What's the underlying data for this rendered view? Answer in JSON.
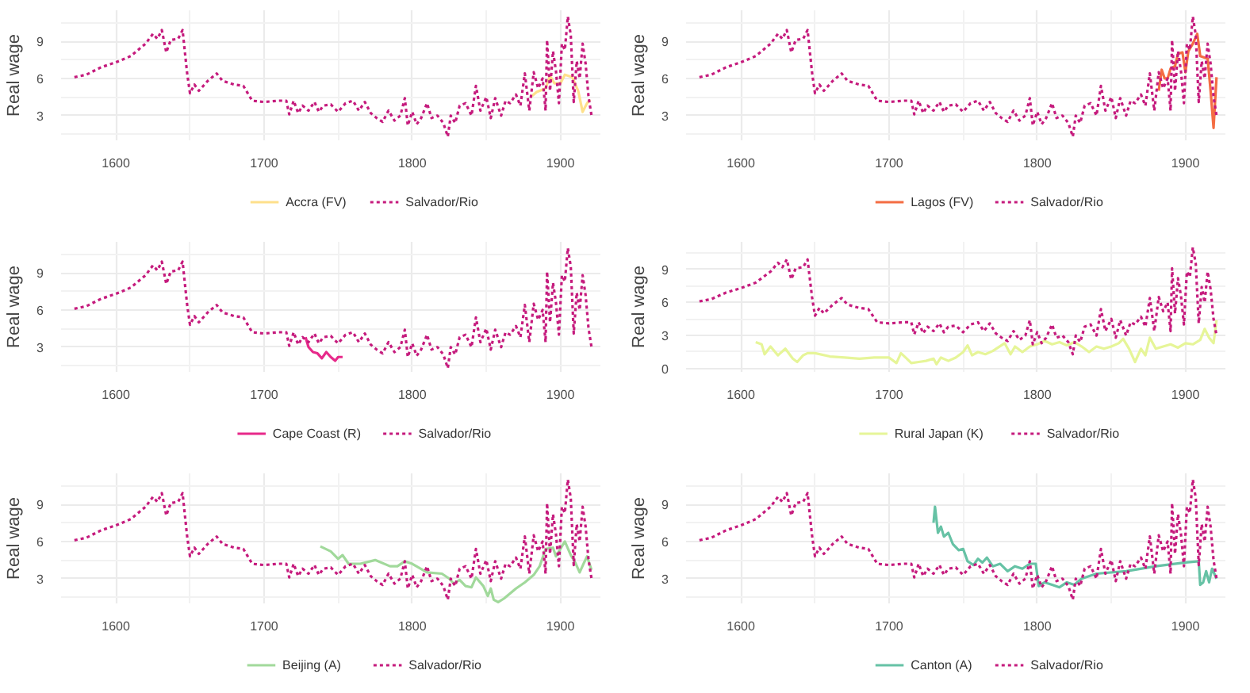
{
  "chart_data": [
    {
      "type": "line",
      "ylabel": "Real wage",
      "xlim": [
        1563,
        1927
      ],
      "xticks": [
        1600,
        1700,
        1800,
        1900
      ],
      "ylim": [
        1.0,
        11.5
      ],
      "yticks": [
        3,
        6,
        9
      ],
      "grid": true,
      "legend": "bottom",
      "series": [
        {
          "name": "Accra (FV)",
          "color": "#fee08b",
          "line_style": "solid",
          "x": [
            1880,
            1884,
            1890,
            1893,
            1896,
            1900,
            1903,
            1908,
            1912,
            1915,
            1918,
            1920
          ],
          "values": [
            4.5,
            4.9,
            5.2,
            6.2,
            5.6,
            5.6,
            6.3,
            6.1,
            5.0,
            3.3,
            4.0,
            4.3
          ]
        },
        {
          "name": "Salvador/Rio",
          "color": "#c51b7d",
          "line_style": "dotted",
          "x": [
            1572,
            1580,
            1590,
            1600,
            1610,
            1620,
            1625,
            1628,
            1631,
            1634,
            1637,
            1642,
            1645,
            1648,
            1650,
            1653,
            1656,
            1662,
            1668,
            1672,
            1680,
            1686,
            1692,
            1700,
            1710,
            1715,
            1717,
            1720,
            1723,
            1726,
            1730,
            1734,
            1737,
            1740,
            1745,
            1750,
            1755,
            1760,
            1764,
            1768,
            1772,
            1776,
            1780,
            1784,
            1788,
            1792,
            1795,
            1797,
            1800,
            1803,
            1806,
            1810,
            1813,
            1817,
            1821,
            1824,
            1826,
            1829,
            1832,
            1836,
            1840,
            1843,
            1846,
            1850,
            1853,
            1856,
            1860,
            1863,
            1866,
            1870,
            1873,
            1876,
            1879,
            1882,
            1885,
            1888,
            1890,
            1891,
            1893,
            1895,
            1897,
            1899,
            1901,
            1903,
            1905,
            1907,
            1909,
            1911,
            1913,
            1915,
            1917,
            1919,
            1921
          ],
          "values": [
            6.1,
            6.3,
            6.9,
            7.3,
            7.8,
            8.8,
            9.6,
            9.2,
            9.9,
            8.1,
            9.1,
            9.2,
            9.9,
            6.5,
            4.8,
            5.5,
            5.0,
            5.8,
            6.4,
            5.8,
            5.5,
            5.4,
            4.2,
            4.1,
            4.2,
            4.2,
            3.1,
            4.2,
            3.2,
            3.8,
            3.4,
            4.1,
            3.3,
            3.8,
            3.9,
            3.3,
            4.0,
            4.2,
            3.4,
            4.1,
            3.2,
            2.8,
            2.5,
            3.4,
            2.6,
            3.0,
            4.4,
            2.2,
            3.3,
            2.3,
            2.8,
            4.0,
            2.8,
            3.0,
            2.4,
            1.3,
            3.0,
            2.4,
            3.8,
            4.0,
            3.0,
            5.4,
            3.4,
            4.5,
            2.8,
            4.4,
            3.0,
            4.2,
            4.0,
            4.7,
            3.8,
            6.4,
            3.4,
            6.5,
            5.2,
            6.0,
            3.4,
            9.1,
            5.0,
            8.2,
            6.6,
            4.0,
            8.8,
            8.3,
            11.0,
            9.5,
            4.1,
            7.4,
            6.0,
            8.8,
            7.2,
            4.5,
            3.0
          ]
        }
      ]
    },
    {
      "type": "line",
      "ylabel": "Real wage",
      "xlim": [
        1563,
        1927
      ],
      "xticks": [
        1600,
        1700,
        1800,
        1900
      ],
      "ylim": [
        1.0,
        11.5
      ],
      "yticks": [
        3,
        6,
        9
      ],
      "grid": true,
      "legend": "bottom",
      "series": [
        {
          "name": "Lagos (FV)",
          "color": "#f46d43",
          "line_style": "solid",
          "x": [
            1882,
            1884,
            1886,
            1888,
            1890,
            1893,
            1895,
            1898,
            1900,
            1902,
            1905,
            1908,
            1910,
            1915,
            1917,
            1919,
            1921
          ],
          "values": [
            5.0,
            6.7,
            6.0,
            6.0,
            6.8,
            7.0,
            8.0,
            8.1,
            6.5,
            8.2,
            8.8,
            9.6,
            7.8,
            7.6,
            5.0,
            2.0,
            6.1
          ]
        },
        {
          "name": "Salvador/Rio",
          "color": "#c51b7d",
          "line_style": "dotted",
          "x": [
            1572,
            1580,
            1590,
            1600,
            1610,
            1620,
            1625,
            1628,
            1631,
            1634,
            1637,
            1642,
            1645,
            1648,
            1650,
            1653,
            1656,
            1662,
            1668,
            1672,
            1680,
            1686,
            1692,
            1700,
            1710,
            1715,
            1717,
            1720,
            1723,
            1726,
            1730,
            1734,
            1737,
            1740,
            1745,
            1750,
            1755,
            1760,
            1764,
            1768,
            1772,
            1776,
            1780,
            1784,
            1788,
            1792,
            1795,
            1797,
            1800,
            1803,
            1806,
            1810,
            1813,
            1817,
            1821,
            1824,
            1826,
            1829,
            1832,
            1836,
            1840,
            1843,
            1846,
            1850,
            1853,
            1856,
            1860,
            1863,
            1866,
            1870,
            1873,
            1876,
            1879,
            1882,
            1885,
            1888,
            1890,
            1891,
            1893,
            1895,
            1897,
            1899,
            1901,
            1903,
            1905,
            1907,
            1909,
            1911,
            1913,
            1915,
            1917,
            1919,
            1921
          ],
          "values": [
            6.1,
            6.3,
            6.9,
            7.3,
            7.8,
            8.8,
            9.6,
            9.2,
            9.9,
            8.1,
            9.1,
            9.2,
            9.9,
            6.5,
            4.8,
            5.5,
            5.0,
            5.8,
            6.4,
            5.8,
            5.5,
            5.4,
            4.2,
            4.1,
            4.2,
            4.2,
            3.1,
            4.2,
            3.2,
            3.8,
            3.4,
            4.1,
            3.3,
            3.8,
            3.9,
            3.3,
            4.0,
            4.2,
            3.4,
            4.1,
            3.2,
            2.8,
            2.5,
            3.4,
            2.6,
            3.0,
            4.4,
            2.2,
            3.3,
            2.3,
            2.8,
            4.0,
            2.8,
            3.0,
            2.4,
            1.3,
            3.0,
            2.4,
            3.8,
            4.0,
            3.0,
            5.4,
            3.4,
            4.5,
            2.8,
            4.4,
            3.0,
            4.2,
            4.0,
            4.7,
            3.8,
            6.4,
            3.4,
            6.5,
            5.2,
            6.0,
            3.4,
            9.1,
            5.0,
            8.2,
            6.6,
            4.0,
            8.8,
            8.3,
            11.0,
            9.5,
            4.1,
            7.4,
            6.0,
            8.8,
            7.2,
            4.5,
            3.0
          ]
        }
      ]
    },
    {
      "type": "line",
      "ylabel": "Real wage",
      "xlim": [
        1563,
        1927
      ],
      "xticks": [
        1600,
        1700,
        1800,
        1900
      ],
      "ylim": [
        1.0,
        11.5
      ],
      "yticks": [
        3,
        6,
        9
      ],
      "grid": true,
      "legend": "bottom",
      "series": [
        {
          "name": "Cape Coast (R)",
          "color": "#e7298a",
          "line_style": "solid",
          "x": [
            1728,
            1730,
            1733,
            1736,
            1739,
            1742,
            1745,
            1748,
            1750,
            1753
          ],
          "values": [
            3.8,
            3.0,
            2.6,
            2.5,
            2.1,
            2.6,
            2.2,
            1.9,
            2.2,
            2.2
          ]
        },
        {
          "name": "Salvador/Rio",
          "color": "#c51b7d",
          "line_style": "dotted",
          "x": [
            1572,
            1580,
            1590,
            1600,
            1610,
            1620,
            1625,
            1628,
            1631,
            1634,
            1637,
            1642,
            1645,
            1648,
            1650,
            1653,
            1656,
            1662,
            1668,
            1672,
            1680,
            1686,
            1692,
            1700,
            1710,
            1715,
            1717,
            1720,
            1723,
            1726,
            1730,
            1734,
            1737,
            1740,
            1745,
            1750,
            1755,
            1760,
            1764,
            1768,
            1772,
            1776,
            1780,
            1784,
            1788,
            1792,
            1795,
            1797,
            1800,
            1803,
            1806,
            1810,
            1813,
            1817,
            1821,
            1824,
            1826,
            1829,
            1832,
            1836,
            1840,
            1843,
            1846,
            1850,
            1853,
            1856,
            1860,
            1863,
            1866,
            1870,
            1873,
            1876,
            1879,
            1882,
            1885,
            1888,
            1890,
            1891,
            1893,
            1895,
            1897,
            1899,
            1901,
            1903,
            1905,
            1907,
            1909,
            1911,
            1913,
            1915,
            1917,
            1919,
            1921
          ],
          "values": [
            6.1,
            6.3,
            6.9,
            7.3,
            7.8,
            8.8,
            9.6,
            9.2,
            9.9,
            8.1,
            9.1,
            9.2,
            9.9,
            6.5,
            4.8,
            5.5,
            5.0,
            5.8,
            6.4,
            5.8,
            5.5,
            5.4,
            4.2,
            4.1,
            4.2,
            4.2,
            3.1,
            4.2,
            3.2,
            3.8,
            3.4,
            4.1,
            3.3,
            3.8,
            3.9,
            3.3,
            4.0,
            4.2,
            3.4,
            4.1,
            3.2,
            2.8,
            2.5,
            3.4,
            2.6,
            3.0,
            4.4,
            2.2,
            3.3,
            2.3,
            2.8,
            4.0,
            2.8,
            3.0,
            2.4,
            1.3,
            3.0,
            2.4,
            3.8,
            4.0,
            3.0,
            5.4,
            3.4,
            4.5,
            2.8,
            4.4,
            3.0,
            4.2,
            4.0,
            4.7,
            3.8,
            6.4,
            3.4,
            6.5,
            5.2,
            6.0,
            3.4,
            9.1,
            5.0,
            8.2,
            6.6,
            4.0,
            8.8,
            8.3,
            11.0,
            9.5,
            4.1,
            7.4,
            6.0,
            8.8,
            7.2,
            4.5,
            3.0
          ]
        }
      ]
    },
    {
      "type": "line",
      "ylabel": "Real wage",
      "xlim": [
        1563,
        1927
      ],
      "xticks": [
        1600,
        1700,
        1800,
        1900
      ],
      "ylim": [
        -0.3,
        11.5
      ],
      "yticks": [
        0,
        3,
        6,
        9
      ],
      "grid": true,
      "legend": "bottom",
      "series": [
        {
          "name": "Rural Japan (K)",
          "color": "#e6f598",
          "line_style": "solid",
          "x": [
            1610,
            1614,
            1616,
            1620,
            1625,
            1630,
            1635,
            1638,
            1642,
            1645,
            1650,
            1660,
            1670,
            1680,
            1690,
            1700,
            1705,
            1708,
            1712,
            1715,
            1720,
            1725,
            1730,
            1732,
            1735,
            1740,
            1745,
            1750,
            1753,
            1756,
            1760,
            1765,
            1770,
            1778,
            1782,
            1785,
            1790,
            1795,
            1800,
            1805,
            1810,
            1815,
            1820,
            1825,
            1830,
            1835,
            1840,
            1845,
            1850,
            1855,
            1858,
            1862,
            1866,
            1870,
            1873,
            1876,
            1880,
            1885,
            1890,
            1895,
            1900,
            1905,
            1910,
            1913,
            1916,
            1919,
            1921
          ],
          "values": [
            2.4,
            2.2,
            1.3,
            2.0,
            1.2,
            1.8,
            0.9,
            0.6,
            1.2,
            1.4,
            1.4,
            1.1,
            1.0,
            0.9,
            1.0,
            1.0,
            0.5,
            1.4,
            0.9,
            0.5,
            0.6,
            0.7,
            0.9,
            0.4,
            1.0,
            0.7,
            1.0,
            1.5,
            2.1,
            1.2,
            1.5,
            1.3,
            1.6,
            2.3,
            1.3,
            2.0,
            1.5,
            2.0,
            2.2,
            2.5,
            2.2,
            2.4,
            2.1,
            2.4,
            2.0,
            1.5,
            2.0,
            1.8,
            2.0,
            2.3,
            2.7,
            1.8,
            0.6,
            1.8,
            1.2,
            2.8,
            1.8,
            2.0,
            2.2,
            1.9,
            2.3,
            2.2,
            2.6,
            3.6,
            2.8,
            2.3,
            4.4
          ]
        },
        {
          "name": "Salvador/Rio",
          "color": "#c51b7d",
          "line_style": "dotted",
          "x": [
            1572,
            1580,
            1590,
            1600,
            1610,
            1620,
            1625,
            1628,
            1631,
            1634,
            1637,
            1642,
            1645,
            1648,
            1650,
            1653,
            1656,
            1662,
            1668,
            1672,
            1680,
            1686,
            1692,
            1700,
            1710,
            1715,
            1717,
            1720,
            1723,
            1726,
            1730,
            1734,
            1737,
            1740,
            1745,
            1750,
            1755,
            1760,
            1764,
            1768,
            1772,
            1776,
            1780,
            1784,
            1788,
            1792,
            1795,
            1797,
            1800,
            1803,
            1806,
            1810,
            1813,
            1817,
            1821,
            1824,
            1826,
            1829,
            1832,
            1836,
            1840,
            1843,
            1846,
            1850,
            1853,
            1856,
            1860,
            1863,
            1866,
            1870,
            1873,
            1876,
            1879,
            1882,
            1885,
            1888,
            1890,
            1891,
            1893,
            1895,
            1897,
            1899,
            1901,
            1903,
            1905,
            1907,
            1909,
            1911,
            1913,
            1915,
            1917,
            1919,
            1921
          ],
          "values": [
            6.1,
            6.3,
            6.9,
            7.3,
            7.8,
            8.8,
            9.6,
            9.2,
            9.9,
            8.1,
            9.1,
            9.2,
            9.9,
            6.5,
            4.8,
            5.5,
            5.0,
            5.8,
            6.4,
            5.8,
            5.5,
            5.4,
            4.2,
            4.1,
            4.2,
            4.2,
            3.1,
            4.2,
            3.2,
            3.8,
            3.4,
            4.1,
            3.3,
            3.8,
            3.9,
            3.3,
            4.0,
            4.2,
            3.4,
            4.1,
            3.2,
            2.8,
            2.5,
            3.4,
            2.6,
            3.0,
            4.4,
            2.2,
            3.3,
            2.3,
            2.8,
            4.0,
            2.8,
            3.0,
            2.4,
            1.3,
            3.0,
            2.4,
            3.8,
            4.0,
            3.0,
            5.4,
            3.4,
            4.5,
            2.8,
            4.4,
            3.0,
            4.2,
            4.0,
            4.7,
            3.8,
            6.4,
            3.4,
            6.5,
            5.2,
            6.0,
            3.4,
            9.1,
            5.0,
            8.2,
            6.6,
            4.0,
            8.8,
            8.3,
            11.0,
            9.5,
            4.1,
            7.4,
            6.0,
            8.8,
            7.2,
            4.5,
            3.0
          ]
        }
      ]
    },
    {
      "type": "line",
      "ylabel": "Real wage",
      "xlim": [
        1563,
        1927
      ],
      "xticks": [
        1600,
        1700,
        1800,
        1900
      ],
      "ylim": [
        1.0,
        11.5
      ],
      "yticks": [
        3,
        6,
        9
      ],
      "grid": true,
      "legend": "bottom",
      "series": [
        {
          "name": "Beijing (A)",
          "color": "#a1d99b",
          "line_style": "solid",
          "x": [
            1738,
            1745,
            1750,
            1753,
            1757,
            1765,
            1775,
            1785,
            1790,
            1795,
            1800,
            1810,
            1820,
            1825,
            1828,
            1832,
            1836,
            1840,
            1843,
            1848,
            1851,
            1853,
            1855,
            1858,
            1862,
            1870,
            1876,
            1882,
            1886,
            1890,
            1895,
            1897,
            1900,
            1903,
            1907,
            1910,
            1913,
            1916,
            1918,
            1921
          ],
          "values": [
            5.6,
            5.2,
            4.6,
            4.9,
            4.2,
            4.2,
            4.5,
            4.0,
            4.0,
            4.4,
            4.2,
            3.5,
            3.4,
            3.0,
            2.6,
            2.9,
            2.4,
            2.3,
            3.1,
            2.4,
            1.6,
            2.2,
            1.3,
            1.1,
            1.4,
            2.2,
            2.7,
            3.3,
            4.0,
            5.4,
            5.5,
            4.8,
            5.4,
            6.0,
            4.9,
            4.3,
            3.5,
            4.3,
            4.8,
            3.7
          ]
        },
        {
          "name": "Salvador/Rio",
          "color": "#c51b7d",
          "line_style": "dotted",
          "x": [
            1572,
            1580,
            1590,
            1600,
            1610,
            1620,
            1625,
            1628,
            1631,
            1634,
            1637,
            1642,
            1645,
            1648,
            1650,
            1653,
            1656,
            1662,
            1668,
            1672,
            1680,
            1686,
            1692,
            1700,
            1710,
            1715,
            1717,
            1720,
            1723,
            1726,
            1730,
            1734,
            1737,
            1740,
            1745,
            1750,
            1755,
            1760,
            1764,
            1768,
            1772,
            1776,
            1780,
            1784,
            1788,
            1792,
            1795,
            1797,
            1800,
            1803,
            1806,
            1810,
            1813,
            1817,
            1821,
            1824,
            1826,
            1829,
            1832,
            1836,
            1840,
            1843,
            1846,
            1850,
            1853,
            1856,
            1860,
            1863,
            1866,
            1870,
            1873,
            1876,
            1879,
            1882,
            1885,
            1888,
            1890,
            1891,
            1893,
            1895,
            1897,
            1899,
            1901,
            1903,
            1905,
            1907,
            1909,
            1911,
            1913,
            1915,
            1917,
            1919,
            1921
          ],
          "values": [
            6.1,
            6.3,
            6.9,
            7.3,
            7.8,
            8.8,
            9.6,
            9.2,
            9.9,
            8.1,
            9.1,
            9.2,
            9.9,
            6.5,
            4.8,
            5.5,
            5.0,
            5.8,
            6.4,
            5.8,
            5.5,
            5.4,
            4.2,
            4.1,
            4.2,
            4.2,
            3.1,
            4.2,
            3.2,
            3.8,
            3.4,
            4.1,
            3.3,
            3.8,
            3.9,
            3.3,
            4.0,
            4.2,
            3.4,
            4.1,
            3.2,
            2.8,
            2.5,
            3.4,
            2.6,
            3.0,
            4.4,
            2.2,
            3.3,
            2.3,
            2.8,
            4.0,
            2.8,
            3.0,
            2.4,
            1.3,
            3.0,
            2.4,
            3.8,
            4.0,
            3.0,
            5.4,
            3.4,
            4.5,
            2.8,
            4.4,
            3.0,
            4.2,
            4.0,
            4.7,
            3.8,
            6.4,
            3.4,
            6.5,
            5.2,
            6.0,
            3.4,
            9.1,
            5.0,
            8.2,
            6.6,
            4.0,
            8.8,
            8.3,
            11.0,
            9.5,
            4.1,
            7.4,
            6.0,
            8.8,
            7.2,
            4.5,
            3.0
          ]
        }
      ]
    },
    {
      "type": "line",
      "ylabel": "Real wage",
      "xlim": [
        1563,
        1927
      ],
      "xticks": [
        1600,
        1700,
        1800,
        1900
      ],
      "ylim": [
        1.0,
        11.5
      ],
      "yticks": [
        3,
        6,
        9
      ],
      "grid": true,
      "legend": "bottom",
      "series": [
        {
          "name": "Canton (A)",
          "color": "#66c2a5",
          "line_style": "solid",
          "x": [
            1730,
            1731,
            1733,
            1735,
            1737,
            1740,
            1743,
            1747,
            1750,
            1753,
            1757,
            1760,
            1763,
            1766,
            1770,
            1775,
            1780,
            1785,
            1790,
            1795,
            1799,
            1801,
            1805,
            1810,
            1815,
            1820,
            1825,
            1830,
            1840,
            1860,
            1880,
            1900,
            1909,
            1910,
            1912,
            1914,
            1916,
            1918,
            1921
          ],
          "values": [
            7.5,
            8.8,
            6.7,
            7.2,
            6.4,
            6.7,
            5.8,
            5.3,
            5.4,
            4.4,
            4.1,
            4.6,
            4.3,
            4.7,
            4.0,
            4.2,
            3.6,
            4.0,
            3.8,
            4.2,
            4.2,
            2.4,
            2.7,
            2.5,
            2.3,
            2.7,
            2.5,
            3.0,
            3.4,
            3.6,
            4.0,
            4.3,
            4.4,
            2.5,
            2.7,
            3.6,
            2.7,
            3.8,
            3.0
          ]
        },
        {
          "name": "Salvador/Rio",
          "color": "#c51b7d",
          "line_style": "dotted",
          "x": [
            1572,
            1580,
            1590,
            1600,
            1610,
            1620,
            1625,
            1628,
            1631,
            1634,
            1637,
            1642,
            1645,
            1648,
            1650,
            1653,
            1656,
            1662,
            1668,
            1672,
            1680,
            1686,
            1692,
            1700,
            1710,
            1715,
            1717,
            1720,
            1723,
            1726,
            1730,
            1734,
            1737,
            1740,
            1745,
            1750,
            1755,
            1760,
            1764,
            1768,
            1772,
            1776,
            1780,
            1784,
            1788,
            1792,
            1795,
            1797,
            1800,
            1803,
            1806,
            1810,
            1813,
            1817,
            1821,
            1824,
            1826,
            1829,
            1832,
            1836,
            1840,
            1843,
            1846,
            1850,
            1853,
            1856,
            1860,
            1863,
            1866,
            1870,
            1873,
            1876,
            1879,
            1882,
            1885,
            1888,
            1890,
            1891,
            1893,
            1895,
            1897,
            1899,
            1901,
            1903,
            1905,
            1907,
            1909,
            1911,
            1913,
            1915,
            1917,
            1919,
            1921
          ],
          "values": [
            6.1,
            6.3,
            6.9,
            7.3,
            7.8,
            8.8,
            9.6,
            9.2,
            9.9,
            8.1,
            9.1,
            9.2,
            9.9,
            6.5,
            4.8,
            5.5,
            5.0,
            5.8,
            6.4,
            5.8,
            5.5,
            5.4,
            4.2,
            4.1,
            4.2,
            4.2,
            3.1,
            4.2,
            3.2,
            3.8,
            3.4,
            4.1,
            3.3,
            3.8,
            3.9,
            3.3,
            4.0,
            4.2,
            3.4,
            4.1,
            3.2,
            2.8,
            2.5,
            3.4,
            2.6,
            3.0,
            4.4,
            2.2,
            3.3,
            2.3,
            2.8,
            4.0,
            2.8,
            3.0,
            2.4,
            1.3,
            3.0,
            2.4,
            3.8,
            4.0,
            3.0,
            5.4,
            3.4,
            4.5,
            2.8,
            4.4,
            3.0,
            4.2,
            4.0,
            4.7,
            3.8,
            6.4,
            3.4,
            6.5,
            5.2,
            6.0,
            3.4,
            9.1,
            5.0,
            8.2,
            6.6,
            4.0,
            8.8,
            8.3,
            11.0,
            9.5,
            4.1,
            7.4,
            6.0,
            8.8,
            7.2,
            4.5,
            3.0
          ]
        }
      ]
    }
  ]
}
